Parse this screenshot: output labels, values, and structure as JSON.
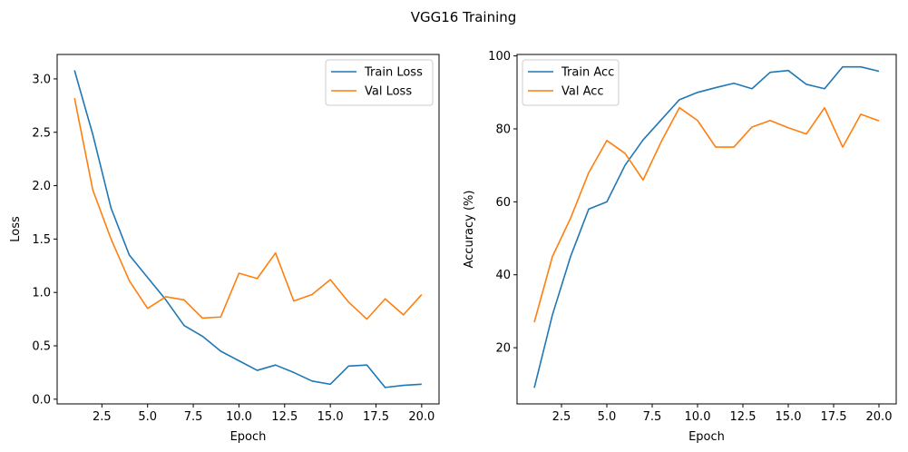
{
  "figure": {
    "suptitle": "VGG16 Training"
  },
  "colors": {
    "train": "#1f77b4",
    "val": "#ff7f0e"
  },
  "chart_data": [
    {
      "type": "line",
      "xlabel": "Epoch",
      "ylabel": "Loss",
      "xlim": [
        0.05,
        20.95
      ],
      "ylim": [
        -0.044,
        3.229
      ],
      "xticks": [
        2.5,
        5.0,
        7.5,
        10.0,
        12.5,
        15.0,
        17.5,
        20.0
      ],
      "xtick_labels": [
        "2.5",
        "5.0",
        "7.5",
        "10.0",
        "12.5",
        "15.0",
        "17.5",
        "20.0"
      ],
      "yticks": [
        0.0,
        0.5,
        1.0,
        1.5,
        2.0,
        2.5,
        3.0
      ],
      "ytick_labels": [
        "0.0",
        "0.5",
        "1.0",
        "1.5",
        "2.0",
        "2.5",
        "3.0"
      ],
      "legend_loc": "upper right",
      "grid": false,
      "x": [
        1,
        2,
        3,
        4,
        5,
        6,
        7,
        8,
        9,
        10,
        11,
        12,
        13,
        14,
        15,
        16,
        17,
        18,
        19,
        20
      ],
      "series": [
        {
          "name": "Train Loss",
          "color": "#1f77b4",
          "values": [
            3.08,
            2.48,
            1.79,
            1.35,
            1.14,
            0.93,
            0.69,
            0.59,
            0.45,
            0.36,
            0.27,
            0.32,
            0.25,
            0.17,
            0.14,
            0.31,
            0.32,
            0.11,
            0.13,
            0.14
          ]
        },
        {
          "name": "Val Loss",
          "color": "#ff7f0e",
          "values": [
            2.82,
            1.96,
            1.5,
            1.11,
            0.85,
            0.96,
            0.93,
            0.76,
            0.77,
            1.18,
            1.13,
            1.37,
            0.92,
            0.98,
            1.12,
            0.91,
            0.75,
            0.94,
            0.79,
            0.98
          ]
        }
      ]
    },
    {
      "type": "line",
      "xlabel": "Epoch",
      "ylabel": "Accuracy (%)",
      "xlim": [
        0.05,
        20.95
      ],
      "ylim": [
        4.6,
        100.4
      ],
      "xticks": [
        2.5,
        5.0,
        7.5,
        10.0,
        12.5,
        15.0,
        17.5,
        20.0
      ],
      "xtick_labels": [
        "2.5",
        "5.0",
        "7.5",
        "10.0",
        "12.5",
        "15.0",
        "17.5",
        "20.0"
      ],
      "yticks": [
        20,
        40,
        60,
        80,
        100
      ],
      "ytick_labels": [
        "20",
        "40",
        "60",
        "80",
        "100"
      ],
      "legend_loc": "upper left",
      "grid": false,
      "x": [
        1,
        2,
        3,
        4,
        5,
        6,
        7,
        8,
        9,
        10,
        11,
        12,
        13,
        14,
        15,
        16,
        17,
        18,
        19,
        20
      ],
      "series": [
        {
          "name": "Train Acc",
          "color": "#1f77b4",
          "values": [
            9.0,
            29.0,
            45.0,
            58.0,
            60.0,
            70.0,
            77.0,
            82.5,
            88.0,
            90.0,
            91.3,
            92.5,
            91.0,
            95.5,
            96.0,
            92.2,
            91.0,
            97.0,
            97.0,
            95.8
          ]
        },
        {
          "name": "Val Acc",
          "color": "#ff7f0e",
          "values": [
            27.0,
            45.0,
            55.5,
            68.0,
            76.8,
            73.3,
            66.0,
            76.5,
            85.8,
            82.3,
            75.0,
            75.0,
            80.5,
            82.3,
            80.3,
            78.6,
            85.8,
            75.0,
            84.0,
            82.2
          ]
        }
      ]
    }
  ]
}
